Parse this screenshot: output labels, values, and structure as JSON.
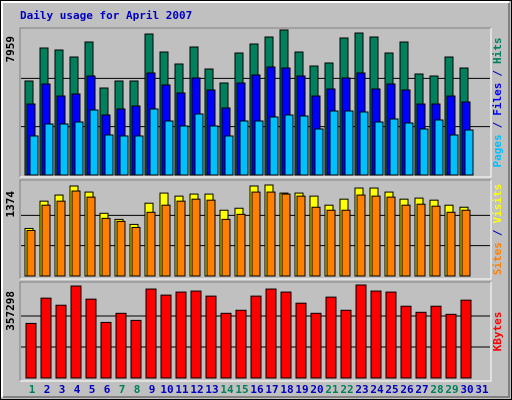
{
  "chart_data": [
    {
      "type": "bar",
      "title": "Daily usage for April 2007",
      "series": [
        {
          "name": "Hits",
          "color": "#00805c",
          "values": [
            5160,
            6971,
            6861,
            6477,
            7300,
            4775,
            5160,
            5160,
            7739,
            6751,
            6093,
            7026,
            5818,
            5050,
            6697,
            7191,
            7575,
            7959,
            6751,
            5983,
            6148,
            7520,
            7794,
            7575,
            6697,
            7300,
            5544,
            5434,
            6477,
            5873,
            null
          ]
        },
        {
          "name": "Files",
          "color": "#0000ff",
          "values": [
            3897,
            4995,
            4336,
            4446,
            5434,
            3293,
            3623,
            3787,
            5599,
            4940,
            4501,
            5324,
            4666,
            3678,
            5050,
            5489,
            5928,
            5873,
            5434,
            4336,
            4721,
            5324,
            5599,
            4721,
            4995,
            4666,
            3897,
            3897,
            4336,
            4007,
            null
          ]
        },
        {
          "name": "Pages",
          "color": "#00c0ff",
          "values": [
            2141,
            2799,
            2799,
            2909,
            3568,
            2196,
            2141,
            2141,
            3623,
            2964,
            2690,
            3348,
            2690,
            2141,
            2964,
            2964,
            3184,
            3293,
            3238,
            2525,
            3513,
            3513,
            3458,
            2909,
            3074,
            2854,
            2525,
            3019,
            2196,
            2470,
            null
          ]
        }
      ],
      "ylim": [
        0,
        7959
      ],
      "yticks": [
        7959
      ],
      "legend_separator": "/",
      "grid_divisions": 3
    },
    {
      "type": "bar",
      "series": [
        {
          "name": "Visits",
          "color": "#ffff00",
          "values": [
            718,
            1130,
            1222,
            1359,
            1267,
            947,
            855,
            779,
            1099,
            1252,
            1206,
            1237,
            1237,
            993,
            1023,
            1359,
            1374,
            1252,
            1252,
            1206,
            1069,
            1160,
            1328,
            1328,
            1267,
            1160,
            1176,
            1145,
            1069,
            1038,
            null
          ]
        },
        {
          "name": "Sites",
          "color": "#ff8000",
          "values": [
            687,
            1069,
            1130,
            1283,
            1191,
            870,
            825,
            733,
            962,
            1069,
            1130,
            1160,
            1145,
            855,
            931,
            1267,
            1267,
            1237,
            1206,
            1038,
            993,
            993,
            1222,
            1206,
            1191,
            1069,
            1084,
            1054,
            962,
            993,
            null
          ]
        }
      ],
      "ylim": [
        0,
        1374
      ],
      "yticks": [
        1374
      ],
      "legend_separator": "/",
      "grid_divisions": 3
    },
    {
      "type": "bar",
      "categories": [
        "1",
        "2",
        "3",
        "4",
        "5",
        "6",
        "7",
        "8",
        "9",
        "10",
        "11",
        "12",
        "13",
        "14",
        "15",
        "16",
        "17",
        "18",
        "19",
        "20",
        "21",
        "22",
        "23",
        "24",
        "25",
        "26",
        "27",
        "28",
        "29",
        "30",
        "31"
      ],
      "category_colors": [
        "#00805c",
        "#0000c0",
        "#0000c0",
        "#0000c0",
        "#0000c0",
        "#0000c0",
        "#00805c",
        "#00805c",
        "#0000c0",
        "#0000c0",
        "#0000c0",
        "#0000c0",
        "#0000c0",
        "#00805c",
        "#00805c",
        "#0000c0",
        "#0000c0",
        "#0000c0",
        "#0000c0",
        "#0000c0",
        "#00805c",
        "#00805c",
        "#0000c0",
        "#0000c0",
        "#0000c0",
        "#0000c0",
        "#0000c0",
        "#00805c",
        "#00805c",
        "#0000c0",
        "#0000c0"
      ],
      "series": [
        {
          "name": "KBytes",
          "color": "#ff0000",
          "values": [
            209720,
            306812,
            279626,
            353417,
            302929,
            213604,
            248557,
            221371,
            341766,
            318463,
            330115,
            333998,
            314580,
            248557,
            260208,
            314580,
            341766,
            330115,
            287394,
            248557,
            310696,
            260208,
            357298,
            333998,
            330115,
            275743,
            252440,
            275743,
            244673,
            299045,
            null
          ]
        }
      ],
      "ylim": [
        0,
        357298
      ],
      "yticks": [
        357298
      ],
      "grid_divisions": 3
    }
  ]
}
